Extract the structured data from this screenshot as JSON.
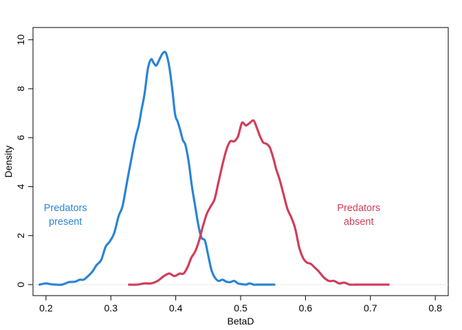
{
  "chart_data": {
    "type": "line",
    "title": "",
    "xlabel": "BetaD",
    "ylabel": "Density",
    "xlim": [
      0.18,
      0.82
    ],
    "ylim": [
      -0.45,
      10.5
    ],
    "xticks": [
      0.2,
      0.3,
      0.4,
      0.5,
      0.6,
      0.7,
      0.8
    ],
    "xtick_labels": [
      "0.2",
      "0.3",
      "0.4",
      "0.5",
      "0.6",
      "0.7",
      "0.8"
    ],
    "yticks": [
      0,
      2,
      4,
      6,
      8,
      10
    ],
    "ytick_labels": [
      "0",
      "2",
      "4",
      "6",
      "8",
      "10"
    ],
    "grid": false,
    "baseline": 0,
    "series": [
      {
        "color": "#2a84d6",
        "x": [
          0.19,
          0.2,
          0.207,
          0.215,
          0.225,
          0.235,
          0.245,
          0.252,
          0.258,
          0.265,
          0.272,
          0.278,
          0.285,
          0.292,
          0.298,
          0.305,
          0.312,
          0.318,
          0.325,
          0.332,
          0.338,
          0.343,
          0.347,
          0.352,
          0.357,
          0.362,
          0.366,
          0.37,
          0.375,
          0.38,
          0.385,
          0.39,
          0.395,
          0.399,
          0.403,
          0.407,
          0.411,
          0.415,
          0.42,
          0.425,
          0.43,
          0.435,
          0.44,
          0.445,
          0.45,
          0.455,
          0.46,
          0.466,
          0.472,
          0.478,
          0.484,
          0.49,
          0.496,
          0.502,
          0.508,
          0.514,
          0.52,
          0.526,
          0.532,
          0.538,
          0.545,
          0.552
        ],
        "y": [
          0.0,
          0.05,
          0.02,
          0.0,
          0.0,
          0.1,
          0.12,
          0.2,
          0.2,
          0.35,
          0.55,
          0.8,
          1.0,
          1.55,
          1.75,
          2.1,
          2.8,
          3.2,
          4.2,
          5.2,
          6.0,
          6.5,
          7.1,
          7.8,
          8.8,
          9.2,
          9.05,
          8.95,
          9.2,
          9.45,
          9.45,
          8.9,
          7.9,
          6.95,
          6.65,
          6.3,
          5.9,
          5.7,
          5.0,
          4.0,
          3.2,
          2.4,
          1.9,
          1.8,
          1.2,
          0.6,
          0.3,
          0.15,
          0.2,
          0.12,
          0.1,
          0.15,
          0.05,
          0.02,
          0.0,
          0.05,
          0.0,
          0.0,
          0.0,
          0.0,
          0.0,
          0.0
        ]
      },
      {
        "color": "#d03e5b",
        "x": [
          0.328,
          0.34,
          0.352,
          0.362,
          0.372,
          0.382,
          0.39,
          0.398,
          0.406,
          0.412,
          0.418,
          0.424,
          0.43,
          0.436,
          0.442,
          0.448,
          0.454,
          0.46,
          0.466,
          0.472,
          0.478,
          0.484,
          0.49,
          0.496,
          0.502,
          0.508,
          0.514,
          0.52,
          0.525,
          0.53,
          0.535,
          0.54,
          0.545,
          0.55,
          0.555,
          0.56,
          0.566,
          0.572,
          0.578,
          0.584,
          0.59,
          0.596,
          0.602,
          0.608,
          0.614,
          0.62,
          0.628,
          0.636,
          0.644,
          0.652,
          0.66,
          0.668,
          0.676,
          0.684,
          0.692,
          0.7,
          0.71,
          0.72,
          0.728
        ],
        "y": [
          0.0,
          0.0,
          0.05,
          0.05,
          0.15,
          0.35,
          0.45,
          0.35,
          0.45,
          0.45,
          0.7,
          1.1,
          1.35,
          1.8,
          2.4,
          2.9,
          3.2,
          3.5,
          4.2,
          4.9,
          5.5,
          5.85,
          5.85,
          6.05,
          6.6,
          6.5,
          6.6,
          6.7,
          6.4,
          6.05,
          5.8,
          5.75,
          5.6,
          5.2,
          4.7,
          4.3,
          3.7,
          3.1,
          2.75,
          2.3,
          1.55,
          1.1,
          0.9,
          0.85,
          0.7,
          0.55,
          0.3,
          0.15,
          0.15,
          0.05,
          0.08,
          0.0,
          0.0,
          0.0,
          0.0,
          0.0,
          0.0,
          0.0,
          0.0
        ]
      }
    ],
    "annotations": [
      {
        "lines": [
          "Predators",
          "present"
        ],
        "color": "#2a84d6"
      },
      {
        "lines": [
          "Predators",
          "absent"
        ],
        "color": "#d03e5b"
      }
    ]
  }
}
